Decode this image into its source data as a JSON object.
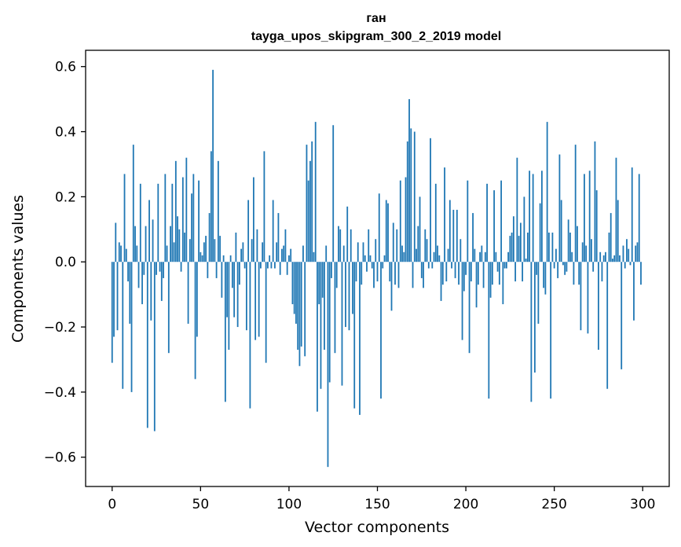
{
  "chart_data": {
    "type": "bar",
    "title": "ган",
    "subtitle": "tayga_upos_skipgram_300_2_2019 model",
    "xlabel": "Vector components",
    "ylabel": "Components values",
    "xlim": [
      -15,
      315
    ],
    "ylim": [
      -0.69,
      0.65
    ],
    "xticks": [
      0,
      50,
      100,
      150,
      200,
      250,
      300
    ],
    "xtick_labels": [
      "0",
      "50",
      "100",
      "150",
      "200",
      "250",
      "300"
    ],
    "yticks": [
      -0.6,
      -0.4,
      -0.2,
      0.0,
      0.2,
      0.4,
      0.6
    ],
    "ytick_labels": [
      "−0.6",
      "−0.4",
      "−0.2",
      "0.0",
      "0.2",
      "0.4",
      "0.6"
    ],
    "grid": false,
    "color": "#1f77b4",
    "x": [
      0,
      1,
      2,
      3,
      4,
      5,
      6,
      7,
      8,
      9,
      10,
      11,
      12,
      13,
      14,
      15,
      16,
      17,
      18,
      19,
      20,
      21,
      22,
      23,
      24,
      25,
      26,
      27,
      28,
      29,
      30,
      31,
      32,
      33,
      34,
      35,
      36,
      37,
      38,
      39,
      40,
      41,
      42,
      43,
      44,
      45,
      46,
      47,
      48,
      49,
      50,
      51,
      52,
      53,
      54,
      55,
      56,
      57,
      58,
      59,
      60,
      61,
      62,
      63,
      64,
      65,
      66,
      67,
      68,
      69,
      70,
      71,
      72,
      73,
      74,
      75,
      76,
      77,
      78,
      79,
      80,
      81,
      82,
      83,
      84,
      85,
      86,
      87,
      88,
      89,
      90,
      91,
      92,
      93,
      94,
      95,
      96,
      97,
      98,
      99,
      100,
      101,
      102,
      103,
      104,
      105,
      106,
      107,
      108,
      109,
      110,
      111,
      112,
      113,
      114,
      115,
      116,
      117,
      118,
      119,
      120,
      121,
      122,
      123,
      124,
      125,
      126,
      127,
      128,
      129,
      130,
      131,
      132,
      133,
      134,
      135,
      136,
      137,
      138,
      139,
      140,
      141,
      142,
      143,
      144,
      145,
      146,
      147,
      148,
      149,
      150,
      151,
      152,
      153,
      154,
      155,
      156,
      157,
      158,
      159,
      160,
      161,
      162,
      163,
      164,
      165,
      166,
      167,
      168,
      169,
      170,
      171,
      172,
      173,
      174,
      175,
      176,
      177,
      178,
      179,
      180,
      181,
      182,
      183,
      184,
      185,
      186,
      187,
      188,
      189,
      190,
      191,
      192,
      193,
      194,
      195,
      196,
      197,
      198,
      199,
      200,
      201,
      202,
      203,
      204,
      205,
      206,
      207,
      208,
      209,
      210,
      211,
      212,
      213,
      214,
      215,
      216,
      217,
      218,
      219,
      220,
      221,
      222,
      223,
      224,
      225,
      226,
      227,
      228,
      229,
      230,
      231,
      232,
      233,
      234,
      235,
      236,
      237,
      238,
      239,
      240,
      241,
      242,
      243,
      244,
      245,
      246,
      247,
      248,
      249,
      250,
      251,
      252,
      253,
      254,
      255,
      256,
      257,
      258,
      259,
      260,
      261,
      262,
      263,
      264,
      265,
      266,
      267,
      268,
      269,
      270,
      271,
      272,
      273,
      274,
      275,
      276,
      277,
      278,
      279,
      280,
      281,
      282,
      283,
      284,
      285,
      286,
      287,
      288,
      289,
      290,
      291,
      292,
      293,
      294,
      295,
      296,
      297,
      298,
      299
    ],
    "values": [
      -0.31,
      -0.23,
      0.12,
      -0.21,
      0.06,
      0.05,
      -0.39,
      0.27,
      0.04,
      -0.06,
      -0.19,
      -0.4,
      0.36,
      0.11,
      0.05,
      -0.08,
      0.24,
      -0.13,
      -0.04,
      0.11,
      -0.51,
      0.19,
      -0.18,
      0.13,
      -0.52,
      -0.04,
      0.24,
      -0.03,
      -0.12,
      -0.05,
      0.27,
      0.05,
      -0.28,
      0.11,
      0.24,
      0.06,
      0.31,
      0.14,
      0.1,
      -0.03,
      0.26,
      0.09,
      0.32,
      -0.19,
      0.07,
      0.21,
      0.27,
      -0.36,
      -0.23,
      0.25,
      0.03,
      0.02,
      0.06,
      0.08,
      -0.05,
      0.15,
      0.34,
      0.59,
      0.07,
      -0.05,
      0.31,
      0.08,
      -0.11,
      0.02,
      -0.43,
      -0.17,
      -0.27,
      0.02,
      -0.08,
      -0.17,
      0.09,
      -0.2,
      -0.07,
      0.04,
      0.06,
      -0.02,
      -0.21,
      0.19,
      -0.45,
      0.07,
      0.26,
      -0.24,
      0.1,
      -0.23,
      -0.02,
      0.06,
      0.34,
      -0.31,
      -0.02,
      0.02,
      -0.02,
      0.19,
      -0.02,
      0.06,
      0.15,
      -0.04,
      0.04,
      0.05,
      0.1,
      -0.04,
      0.02,
      0.04,
      -0.13,
      -0.16,
      -0.19,
      -0.27,
      -0.32,
      -0.26,
      0.05,
      -0.29,
      0.36,
      0.25,
      0.31,
      0.37,
      0.03,
      0.43,
      -0.46,
      -0.13,
      -0.39,
      -0.11,
      -0.27,
      0.05,
      -0.63,
      -0.37,
      -0.05,
      0.42,
      -0.28,
      -0.08,
      0.11,
      0.1,
      -0.38,
      0.05,
      -0.2,
      0.17,
      -0.21,
      0.1,
      -0.16,
      -0.45,
      -0.06,
      0.06,
      -0.47,
      -0.07,
      0.06,
      0.02,
      -0.03,
      0.1,
      0.02,
      -0.02,
      -0.08,
      0.07,
      -0.06,
      0.21,
      -0.42,
      -0.02,
      0.02,
      0.19,
      0.18,
      -0.06,
      -0.15,
      0.12,
      -0.07,
      0.1,
      -0.08,
      0.25,
      0.05,
      0.03,
      0.26,
      0.37,
      0.5,
      0.41,
      -0.08,
      0.4,
      0.04,
      0.11,
      0.2,
      -0.05,
      -0.08,
      0.1,
      0.07,
      -0.02,
      0.38,
      -0.02,
      0.03,
      0.24,
      0.05,
      0.02,
      -0.12,
      -0.07,
      0.29,
      -0.06,
      0.04,
      0.19,
      -0.02,
      0.16,
      -0.05,
      0.16,
      -0.07,
      0.07,
      -0.24,
      -0.09,
      -0.04,
      0.25,
      -0.28,
      -0.06,
      0.15,
      0.04,
      -0.14,
      -0.07,
      0.03,
      0.05,
      -0.08,
      0.03,
      0.24,
      -0.42,
      -0.11,
      -0.07,
      0.22,
      0.03,
      -0.03,
      -0.07,
      0.25,
      -0.13,
      -0.02,
      -0.02,
      0.03,
      0.08,
      0.09,
      0.14,
      -0.06,
      0.32,
      0.08,
      0.12,
      -0.06,
      0.2,
      0.01,
      0.09,
      0.28,
      -0.43,
      0.27,
      -0.34,
      -0.04,
      -0.19,
      0.18,
      0.28,
      -0.08,
      -0.1,
      0.43,
      0.09,
      -0.42,
      0.09,
      -0.02,
      0.04,
      -0.05,
      0.33,
      0.19,
      -0.01,
      -0.04,
      -0.03,
      0.13,
      0.09,
      0.03,
      -0.07,
      0.36,
      0.11,
      -0.07,
      -0.21,
      0.06,
      0.27,
      0.05,
      -0.22,
      0.28,
      0.07,
      -0.03,
      0.37,
      0.22,
      -0.27,
      0.03,
      -0.06,
      0.02,
      0.03,
      -0.39,
      0.09,
      0.15,
      0.01,
      0.02,
      0.32,
      0.19,
      0.02,
      -0.33,
      0.05,
      -0.02,
      0.07,
      0.04,
      -0.01,
      0.29,
      -0.18,
      0.05,
      0.06,
      0.27,
      -0.07
    ]
  }
}
